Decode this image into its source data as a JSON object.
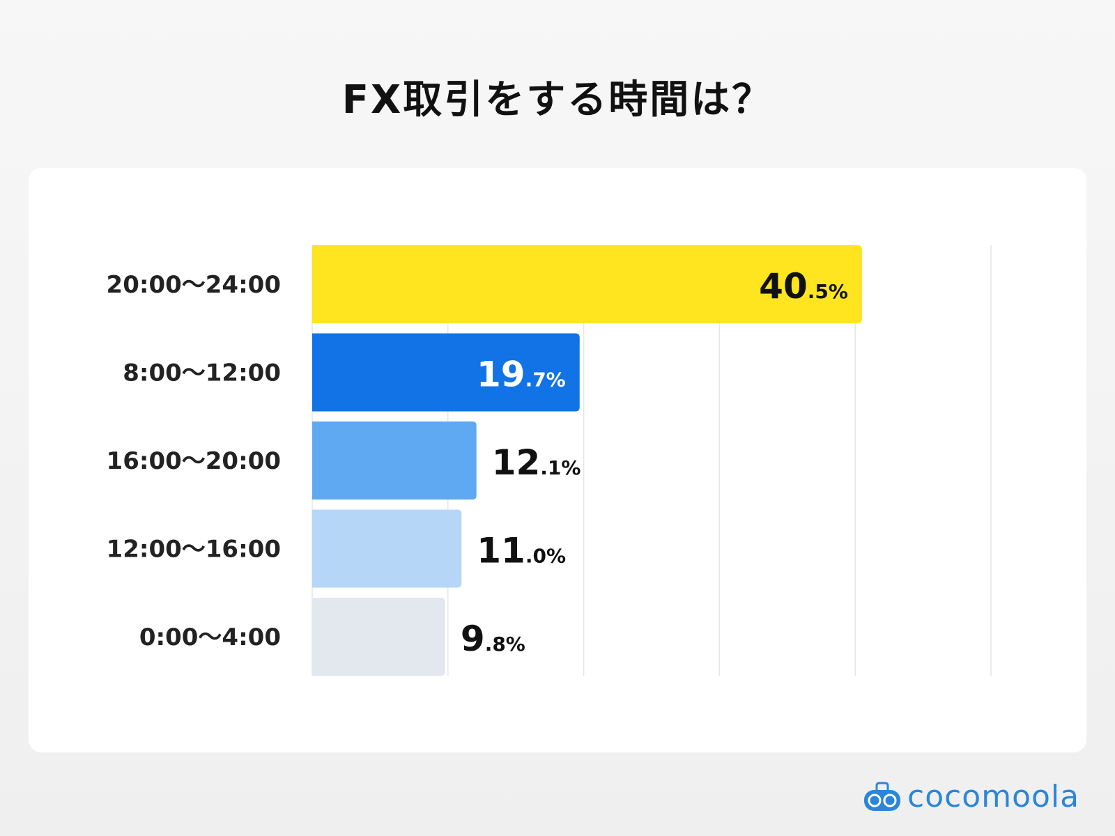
{
  "chart_data": {
    "type": "bar",
    "orientation": "horizontal",
    "title": "FX取引をする時間は？",
    "categories": [
      "20:00〜24:00",
      "8:00〜12:00",
      "16:00〜20:00",
      "12:00〜16:00",
      "0:00〜4:00"
    ],
    "values": [
      40.5,
      19.7,
      12.1,
      11.0,
      9.8
    ],
    "value_labels": [
      [
        "40",
        ".5%"
      ],
      [
        "19",
        ".7%"
      ],
      [
        "12",
        ".1%"
      ],
      [
        "11",
        ".0%"
      ],
      [
        "9",
        ".8%"
      ]
    ],
    "colors": [
      "#ffe520",
      "#1173e6",
      "#5ea9f2",
      "#b6d6f8",
      "#e3e8ef"
    ],
    "label_colors": [
      "#111111",
      "#ffffff",
      "#111111",
      "#111111",
      "#111111"
    ],
    "xlim": [
      0,
      50
    ],
    "grid": true,
    "xlabel": "",
    "ylabel": ""
  },
  "logo": {
    "text": "cocomoola",
    "color": "#2b86d9"
  }
}
